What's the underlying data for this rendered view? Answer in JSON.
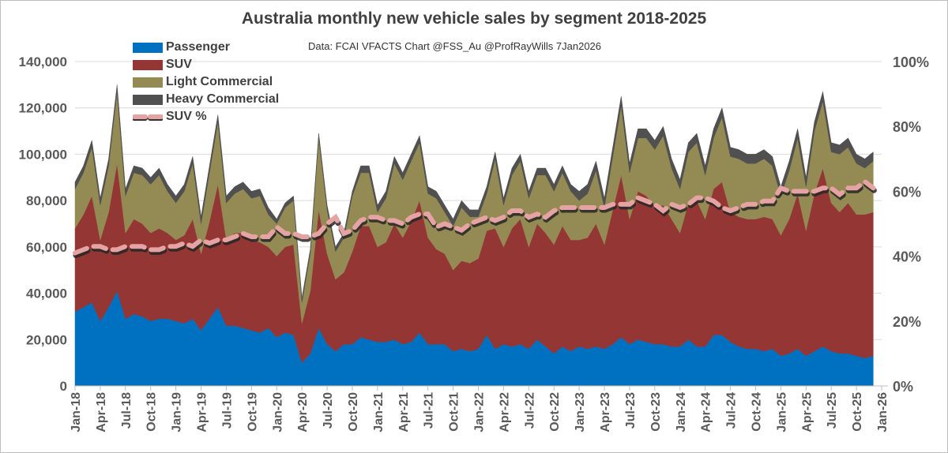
{
  "chart_data": {
    "type": "area",
    "stacked": true,
    "title": "Australia monthly new vehicle sales by segment 2018-2025",
    "note": "Data: FCAI VFACTS  Chart @FSS_Au @ProfRayWills 7Jan2026",
    "units": "thousands of vehicles",
    "start_month": "Jan-18",
    "months": 96,
    "ylim": [
      0,
      140000
    ],
    "y2lim": [
      0,
      100
    ],
    "y_ticks": [
      "0",
      "20,000",
      "40,000",
      "60,000",
      "80,000",
      "100,000",
      "120,000",
      "140,000"
    ],
    "y2_ticks": [
      "0%",
      "20%",
      "40%",
      "60%",
      "80%",
      "100%"
    ],
    "x_ticks": [
      "Jan-18",
      "Apr-18",
      "Jul-18",
      "Oct-18",
      "Jan-19",
      "Apr-19",
      "Jul-19",
      "Oct-19",
      "Jan-20",
      "Apr-20",
      "Jul-20",
      "Oct-20",
      "Jan-21",
      "Apr-21",
      "Jul-21",
      "Oct-21",
      "Jan-22",
      "Apr-22",
      "Jul-22",
      "Oct-22",
      "Jan-23",
      "Apr-23",
      "Jul-23",
      "Oct-23",
      "Jan-24",
      "Apr-24",
      "Jul-24",
      "Oct-24",
      "Jan-25",
      "Apr-25",
      "Jul-25",
      "Oct-25",
      "Jan-26"
    ],
    "grid": true,
    "legend_position": "top-left",
    "series": [
      {
        "name": "Passenger",
        "color": "#0070c0",
        "values": [
          32,
          34,
          36,
          28,
          34,
          41,
          29,
          31,
          30,
          28,
          29,
          29,
          28,
          27,
          29,
          24,
          29,
          34,
          26,
          26,
          25,
          24,
          23,
          25,
          21,
          23,
          22,
          10,
          14,
          25,
          18,
          15,
          18,
          18,
          21,
          20,
          19,
          19,
          20,
          18,
          19,
          23,
          18,
          18,
          18,
          15,
          16,
          15,
          16,
          22,
          16,
          18,
          17,
          18,
          16,
          20,
          17,
          14,
          17,
          15,
          17,
          16,
          17,
          16,
          18,
          21,
          18,
          20,
          19,
          18,
          18,
          17,
          17,
          20,
          17,
          17,
          22,
          22,
          19,
          17,
          16,
          16,
          15,
          16,
          13,
          14,
          16,
          13,
          15,
          17,
          15,
          14,
          14,
          13,
          12,
          13
        ]
      },
      {
        "name": "SUV",
        "color": "#943634",
        "values": [
          36,
          40,
          46,
          35,
          41,
          55,
          37,
          41,
          40,
          38,
          39,
          37,
          35,
          38,
          43,
          33,
          42,
          53,
          37,
          40,
          41,
          39,
          39,
          35,
          35,
          37,
          39,
          17,
          27,
          51,
          39,
          31,
          31,
          40,
          48,
          49,
          41,
          43,
          50,
          46,
          52,
          57,
          46,
          41,
          39,
          35,
          38,
          38,
          39,
          45,
          52,
          42,
          51,
          54,
          44,
          50,
          49,
          47,
          52,
          48,
          46,
          48,
          53,
          45,
          58,
          70,
          54,
          64,
          63,
          59,
          60,
          55,
          49,
          59,
          63,
          55,
          63,
          66,
          56,
          56,
          56,
          56,
          58,
          56,
          52,
          58,
          67,
          54,
          68,
          77,
          64,
          61,
          65,
          61,
          62,
          62
        ]
      },
      {
        "name": "Light Commercial",
        "color": "#948a54",
        "values": [
          17,
          18,
          21,
          15,
          20,
          31,
          16,
          20,
          21,
          21,
          23,
          18,
          16,
          19,
          24,
          13,
          21,
          27,
          16,
          17,
          19,
          18,
          20,
          14,
          14,
          17,
          19,
          9,
          16,
          31,
          19,
          12,
          15,
          24,
          23,
          23,
          15,
          19,
          26,
          25,
          26,
          25,
          19,
          22,
          18,
          19,
          23,
          20,
          18,
          16,
          30,
          18,
          23,
          25,
          21,
          21,
          25,
          23,
          23,
          21,
          17,
          19,
          23,
          16,
          23,
          30,
          20,
          23,
          25,
          25,
          30,
          22,
          19,
          22,
          25,
          19,
          22,
          28,
          24,
          25,
          24,
          24,
          25,
          23,
          17,
          21,
          24,
          19,
          27,
          29,
          22,
          25,
          24,
          22,
          20,
          22
        ]
      },
      {
        "name": "Heavy Commercial",
        "color": "#505050",
        "values": [
          3,
          3,
          3,
          3,
          3,
          3,
          3,
          3,
          3,
          3,
          3,
          3,
          3,
          3,
          3,
          3,
          3,
          3,
          3,
          3,
          3,
          3,
          3,
          3,
          2,
          2,
          2,
          2,
          2,
          2,
          2,
          2,
          2,
          2,
          3,
          3,
          3,
          3,
          3,
          3,
          3,
          3,
          3,
          3,
          3,
          3,
          3,
          3,
          3,
          3,
          3,
          3,
          3,
          3,
          3,
          3,
          3,
          3,
          3,
          3,
          4,
          4,
          4,
          4,
          4,
          4,
          4,
          4,
          4,
          4,
          4,
          4,
          4,
          4,
          4,
          4,
          4,
          4,
          4,
          4,
          4,
          4,
          4,
          4,
          4,
          4,
          4,
          4,
          4,
          4,
          4,
          4,
          4,
          4,
          4,
          4
        ]
      }
    ],
    "line_series": {
      "name": "SUV %",
      "axis": "right",
      "color": "#e6a3a3",
      "values": [
        41,
        42,
        43,
        43,
        42,
        42,
        43,
        43,
        43,
        42,
        42,
        43,
        43,
        44,
        43,
        45,
        44,
        45,
        45,
        46,
        47,
        46,
        46,
        46,
        49,
        47,
        47,
        46,
        46,
        47,
        50,
        52,
        47,
        48,
        51,
        52,
        52,
        51,
        51,
        50,
        52,
        53,
        53,
        49,
        50,
        49,
        48,
        50,
        51,
        52,
        51,
        52,
        54,
        54,
        52,
        53,
        52,
        54,
        55,
        55,
        55,
        55,
        55,
        55,
        56,
        56,
        56,
        58,
        57,
        56,
        54,
        56,
        55,
        56,
        58,
        58,
        57,
        55,
        54,
        55,
        56,
        56,
        57,
        57,
        61,
        60,
        60,
        60,
        60,
        61,
        61,
        59,
        61,
        61,
        63,
        61
      ]
    }
  }
}
